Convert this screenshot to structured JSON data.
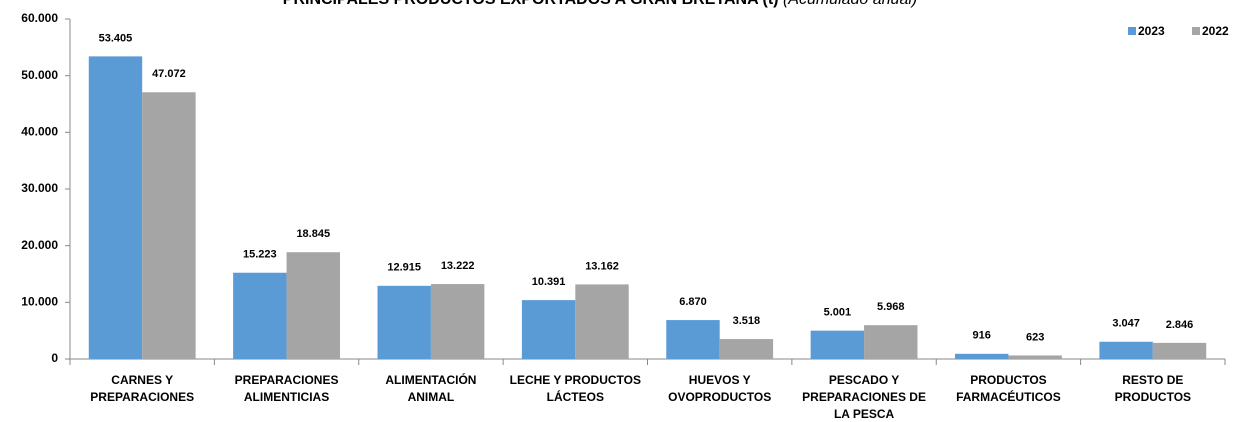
{
  "chart_data": {
    "type": "bar",
    "title": "PRINCIPALES PRODUCTOS EXPORTADOS A GRAN BRETAÑA (t)",
    "subtitle": "(Acumulado anual)",
    "categories": [
      "CARNES Y PREPARACIONES",
      "PREPARACIONES ALIMENTICIAS",
      "ALIMENTACIÓN ANIMAL",
      "LECHE Y PRODUCTOS LÁCTEOS",
      "HUEVOS Y OVOPRODUCTOS",
      "PESCADO Y PREPARACIONES DE LA PESCA",
      "PRODUCTOS FARMACÉUTICOS",
      "RESTO DE PRODUCTOS"
    ],
    "series": [
      {
        "name": "2023",
        "color": "#5b9bd5",
        "values": [
          53405,
          15223,
          12915,
          10391,
          6870,
          5001,
          916,
          3047
        ],
        "value_labels": [
          "53.405",
          "15.223",
          "12.915",
          "10.391",
          "6.870",
          "5.001",
          "916",
          "3.047"
        ]
      },
      {
        "name": "2022",
        "color": "#a5a5a5",
        "values": [
          47072,
          18845,
          13222,
          13162,
          3518,
          5968,
          623,
          2846
        ],
        "value_labels": [
          "47.072",
          "18.845",
          "13.222",
          "13.162",
          "3.518",
          "5.968",
          "623",
          "2.846"
        ]
      }
    ],
    "ylim": [
      0,
      60000
    ],
    "yticks": [
      0,
      {
        "value": 10000,
        "label": "10.000"
      },
      {
        "value": 20000,
        "label": "20.000"
      },
      {
        "value": 30000,
        "label": "30.000"
      },
      {
        "value": 40000,
        "label": "40.000"
      },
      {
        "value": 50000,
        "label": "50.000"
      },
      {
        "value": 60000,
        "label": "60.000"
      }
    ],
    "grid": false,
    "legend": "top-right"
  }
}
